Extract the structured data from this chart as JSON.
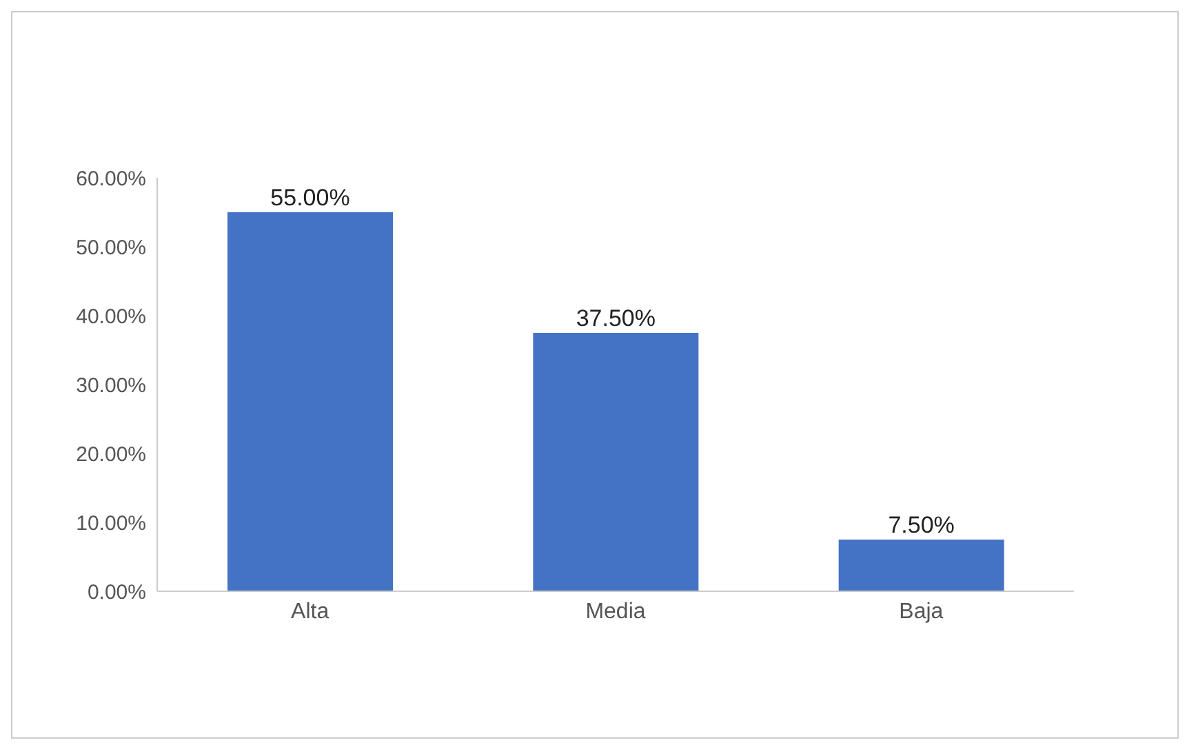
{
  "chart_data": {
    "type": "bar",
    "categories": [
      "Alta",
      "Media",
      "Baja"
    ],
    "values": [
      55,
      37.5,
      7.5
    ],
    "color": "#4472c4",
    "value_labels": [
      "55.00%",
      "37.50%",
      "7.50%"
    ],
    "ylim": [
      0,
      60
    ],
    "yticks": [
      {
        "value": 0,
        "label": "0.00%"
      },
      {
        "value": 10,
        "label": "10.00%"
      },
      {
        "value": 20,
        "label": "20.00%"
      },
      {
        "value": 30,
        "label": "30.00%"
      },
      {
        "value": 40,
        "label": "40.00%"
      },
      {
        "value": 50,
        "label": "50.00%"
      },
      {
        "value": 60,
        "label": "60.00%"
      }
    ],
    "grid": false
  }
}
